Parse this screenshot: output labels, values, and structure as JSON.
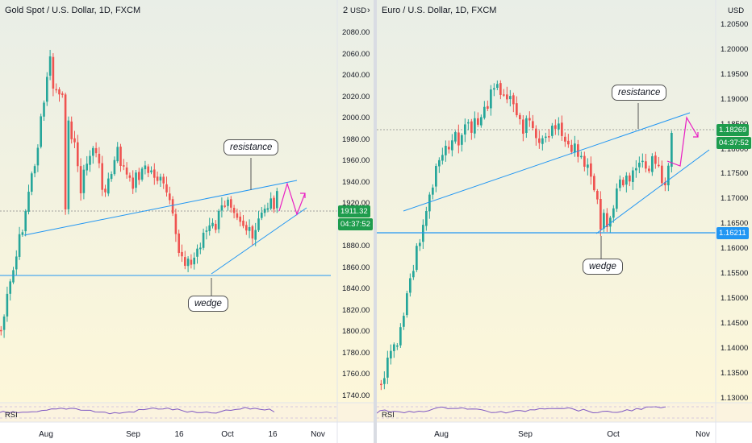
{
  "colors": {
    "up": "#26a69a",
    "down": "#ef5350",
    "trend": "#2196f3",
    "projection": "#e91ec4",
    "rsi": "#7e57c2",
    "price_tag": "#1e9c4d",
    "level_tag": "#2196f3",
    "bg_top": "#e9eee7",
    "bg_bottom": "#fdf7d9"
  },
  "left": {
    "title": "Gold Spot / U.S. Dollar, 1D, FXCM",
    "currency": "USD",
    "ctrl_num": "2",
    "ctrl_icon": "settings-icon",
    "y_labels": [
      "2080.00",
      "2060.00",
      "2040.00",
      "2020.00",
      "2000.00",
      "1980.00",
      "1960.00",
      "1940.00",
      "1920.00",
      "1900.00",
      "1880.00",
      "1860.00",
      "1840.00",
      "1820.00",
      "1800.00",
      "1780.00",
      "1760.00",
      "1740.00"
    ],
    "x_labels": [
      "Aug",
      "Sep",
      "16",
      "Oct",
      "16",
      "Nov"
    ],
    "price": "1911.32",
    "countdown": "04:37:52",
    "resistance": "resistance",
    "wedge": "wedge",
    "rsi": "RSI"
  },
  "right": {
    "title": "Euro / U.S. Dollar, 1D, FXCM",
    "currency": "USD",
    "y_labels": [
      "1.20500",
      "1.20000",
      "1.19500",
      "1.19000",
      "1.18500",
      "1.18000",
      "1.17500",
      "1.17000",
      "1.16500",
      "1.16000",
      "1.15500",
      "1.15000",
      "1.14500",
      "1.14000",
      "1.13500",
      "1.13000"
    ],
    "x_labels": [
      "Aug",
      "Sep",
      "Oct",
      "Nov"
    ],
    "price": "1.18269",
    "countdown": "04:37:52",
    "level": "1.16211",
    "resistance": "resistance",
    "wedge": "wedge",
    "rsi": "RSI"
  }
}
